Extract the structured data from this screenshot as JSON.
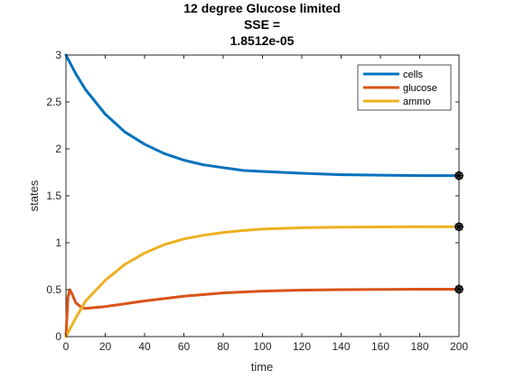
{
  "chart_data": {
    "type": "line",
    "title_lines": [
      "12 degree Glucose limited",
      "SSE =",
      "1.8512e-05"
    ],
    "xlabel": "time",
    "ylabel": "states",
    "xlim": [
      0,
      200
    ],
    "ylim": [
      0,
      3
    ],
    "xticks": [
      0,
      20,
      40,
      60,
      80,
      100,
      120,
      140,
      160,
      180,
      200
    ],
    "yticks": [
      0,
      0.5,
      1,
      1.5,
      2,
      2.5,
      3
    ],
    "ytick_labels": [
      "0",
      "0.5",
      "1",
      "1.5",
      "2",
      "2.5",
      "3"
    ],
    "grid": false,
    "legend_position": "top-right",
    "series": [
      {
        "name": "cells",
        "color": "#0072BD",
        "x": [
          0,
          5,
          10,
          20,
          30,
          40,
          50,
          60,
          70,
          80,
          90,
          100,
          120,
          140,
          160,
          180,
          200
        ],
        "y": [
          3.0,
          2.8,
          2.63,
          2.37,
          2.18,
          2.05,
          1.95,
          1.88,
          1.83,
          1.8,
          1.77,
          1.76,
          1.74,
          1.725,
          1.72,
          1.715,
          1.715
        ]
      },
      {
        "name": "glucose",
        "color": "#D95319",
        "x": [
          0,
          1,
          2,
          3,
          5,
          8,
          10,
          20,
          30,
          40,
          60,
          80,
          100,
          120,
          140,
          160,
          180,
          200
        ],
        "y": [
          0.0,
          0.42,
          0.5,
          0.46,
          0.36,
          0.31,
          0.3,
          0.32,
          0.35,
          0.38,
          0.43,
          0.465,
          0.485,
          0.495,
          0.5,
          0.503,
          0.505,
          0.505
        ]
      },
      {
        "name": "ammo",
        "color": "#EDB120",
        "x": [
          0,
          5,
          10,
          20,
          30,
          40,
          50,
          60,
          70,
          80,
          90,
          100,
          120,
          140,
          160,
          180,
          200
        ],
        "y": [
          0.0,
          0.2,
          0.38,
          0.6,
          0.77,
          0.89,
          0.98,
          1.04,
          1.08,
          1.11,
          1.13,
          1.145,
          1.16,
          1.165,
          1.168,
          1.17,
          1.17
        ]
      }
    ],
    "endpoint_markers": [
      {
        "series": "cells",
        "x": 200,
        "y": 1.715
      },
      {
        "series": "ammo",
        "x": 200,
        "y": 1.17
      },
      {
        "series": "glucose",
        "x": 200,
        "y": 0.505
      }
    ]
  }
}
